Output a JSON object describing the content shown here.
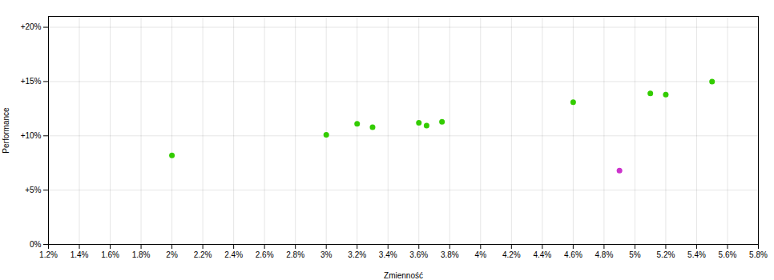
{
  "chart_data": {
    "type": "scatter",
    "xlabel": "Zmienność",
    "ylabel": "Performance",
    "xlim": [
      0.012,
      0.058
    ],
    "ylim": [
      0.0,
      0.21
    ],
    "xticks": [
      {
        "value": 0.012,
        "label": "1.2%"
      },
      {
        "value": 0.014,
        "label": "1.4%"
      },
      {
        "value": 0.016,
        "label": "1.6%"
      },
      {
        "value": 0.018,
        "label": "1.8%"
      },
      {
        "value": 0.02,
        "label": "2%"
      },
      {
        "value": 0.022,
        "label": "2.2%"
      },
      {
        "value": 0.024,
        "label": "2.4%"
      },
      {
        "value": 0.026,
        "label": "2.6%"
      },
      {
        "value": 0.028,
        "label": "2.8%"
      },
      {
        "value": 0.03,
        "label": "3%"
      },
      {
        "value": 0.032,
        "label": "3.2%"
      },
      {
        "value": 0.034,
        "label": "3.4%"
      },
      {
        "value": 0.036,
        "label": "3.6%"
      },
      {
        "value": 0.038,
        "label": "3.8%"
      },
      {
        "value": 0.04,
        "label": "4%"
      },
      {
        "value": 0.042,
        "label": "4.2%"
      },
      {
        "value": 0.044,
        "label": "4.4%"
      },
      {
        "value": 0.046,
        "label": "4.6%"
      },
      {
        "value": 0.048,
        "label": "4.8%"
      },
      {
        "value": 0.05,
        "label": "5%"
      },
      {
        "value": 0.052,
        "label": "5.2%"
      },
      {
        "value": 0.054,
        "label": "5.4%"
      },
      {
        "value": 0.056,
        "label": "5.6%"
      },
      {
        "value": 0.058,
        "label": "5.8%"
      }
    ],
    "yticks": [
      {
        "value": 0.0,
        "label": "0%"
      },
      {
        "value": 0.05,
        "label": "+5%"
      },
      {
        "value": 0.1,
        "label": "+10%"
      },
      {
        "value": 0.15,
        "label": "+15%"
      },
      {
        "value": 0.2,
        "label": "+20%"
      }
    ],
    "grid": true,
    "series": [
      {
        "color": "#33cc00",
        "x": [
          0.02,
          0.03,
          0.032,
          0.033,
          0.036,
          0.0365,
          0.0375,
          0.046,
          0.051,
          0.052,
          0.055
        ],
        "values": [
          0.082,
          0.101,
          0.111,
          0.108,
          0.112,
          0.1095,
          0.113,
          0.131,
          0.139,
          0.138,
          0.15
        ]
      },
      {
        "color": "#cc33cc",
        "x": [
          0.049
        ],
        "values": [
          0.068
        ]
      }
    ]
  }
}
